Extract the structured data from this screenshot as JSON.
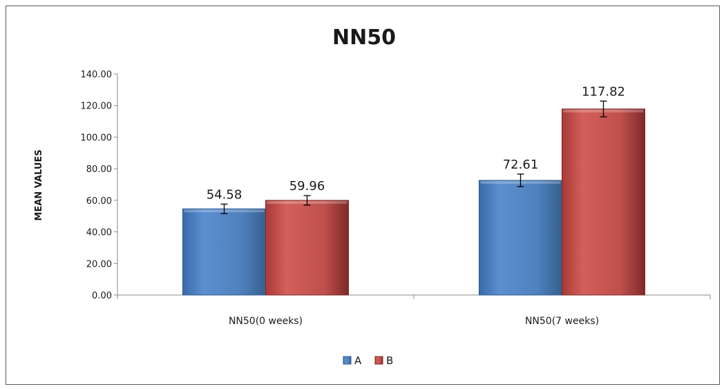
{
  "chart_data": {
    "type": "bar",
    "title": "NN50",
    "xlabel": "",
    "ylabel": "MEAN VALUES",
    "ylim": [
      0,
      140
    ],
    "yticks": [
      "0.00",
      "20.00",
      "40.00",
      "60.00",
      "80.00",
      "100.00",
      "120.00",
      "140.00"
    ],
    "categories": [
      "NN50(0 weeks)",
      "NN50(7 weeks)"
    ],
    "series": [
      {
        "name": "A",
        "color": "#4f81bd",
        "values": [
          54.58,
          72.61
        ],
        "errors": [
          3,
          4
        ],
        "labels": [
          "54.58",
          "72.61"
        ]
      },
      {
        "name": "B",
        "color": "#c0504d",
        "values": [
          59.96,
          117.82
        ],
        "errors": [
          3,
          5
        ],
        "labels": [
          "59.96",
          "117.82"
        ]
      }
    ],
    "grid": false,
    "legend": "bottom-center"
  }
}
